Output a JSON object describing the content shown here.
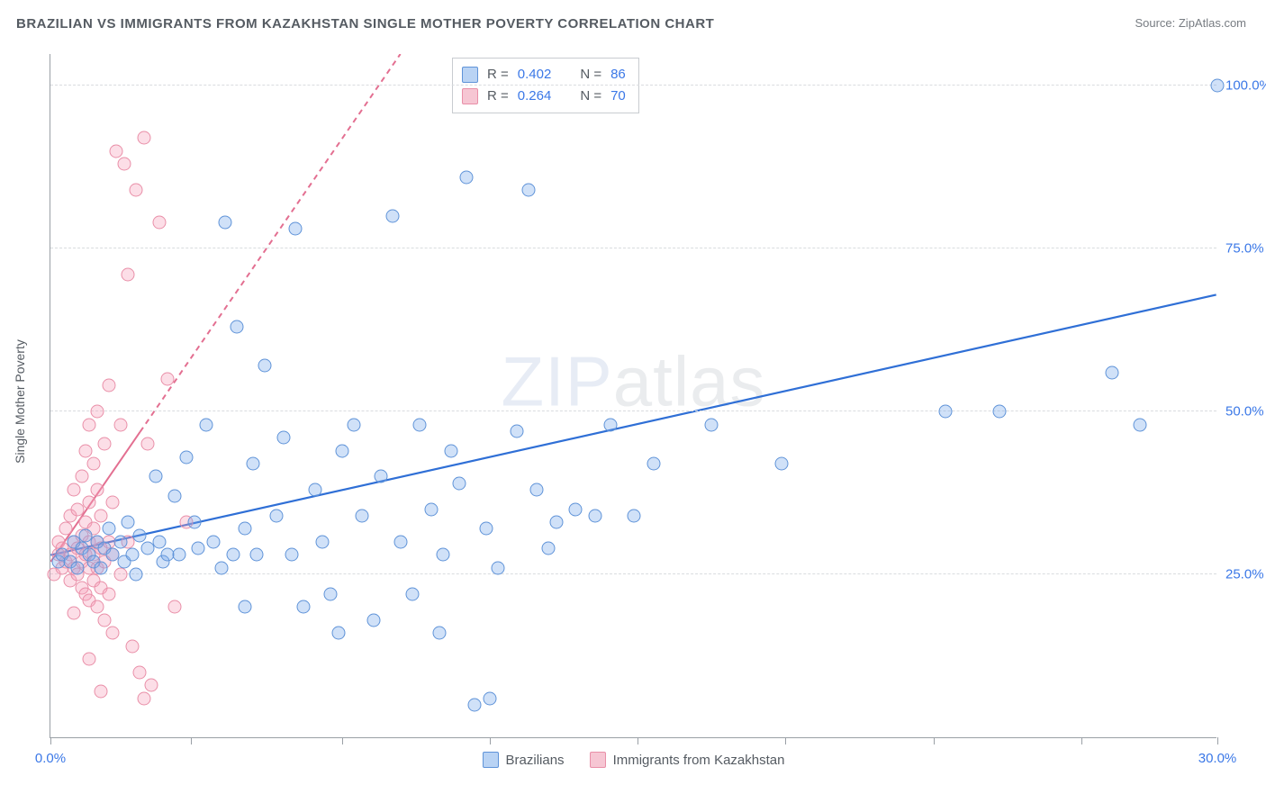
{
  "title": "BRAZILIAN VS IMMIGRANTS FROM KAZAKHSTAN SINGLE MOTHER POVERTY CORRELATION CHART",
  "source_label": "Source: ZipAtlas.com",
  "ylabel": "Single Mother Poverty",
  "watermark": "ZIPatlas",
  "chart": {
    "type": "scatter",
    "xlim": [
      0,
      30
    ],
    "ylim": [
      0,
      105
    ],
    "x_tick_positions": [
      0,
      3.6,
      7.5,
      11.3,
      15.1,
      18.9,
      22.7,
      26.5,
      30
    ],
    "x_tick_labels": {
      "0": "0.0%",
      "30": "30.0%"
    },
    "y_gridlines": [
      25,
      50,
      75,
      100
    ],
    "y_tick_labels": {
      "25": "25.0%",
      "50": "50.0%",
      "75": "75.0%",
      "100": "100.0%"
    },
    "background_color": "#ffffff",
    "grid_color": "#d9dcdf",
    "axis_color": "#9aa0a6",
    "tick_label_color": "#3b78e7",
    "label_color": "#555b62",
    "label_fontsize": 14,
    "tick_fontsize": 15,
    "marker_radius": 7.5,
    "marker_stroke_width": 1
  },
  "series": [
    {
      "name": "Brazilians",
      "marker_fill": "rgba(120,170,235,0.35)",
      "marker_stroke": "#5f93d8",
      "swatch_fill": "#b9d3f4",
      "swatch_stroke": "#5f93d8",
      "trend": {
        "x1": 0,
        "y1": 28,
        "x2": 30,
        "y2": 68,
        "stroke": "#2f6fd6",
        "width": 2.2,
        "dash": null,
        "dash_from_x": null
      },
      "R_label": "R = ",
      "R": "0.402",
      "N_label": "N = ",
      "N": "86",
      "points": [
        [
          0.2,
          27
        ],
        [
          0.3,
          28
        ],
        [
          0.5,
          27
        ],
        [
          0.6,
          30
        ],
        [
          0.7,
          26
        ],
        [
          0.8,
          29
        ],
        [
          0.9,
          31
        ],
        [
          1.0,
          28
        ],
        [
          1.1,
          27
        ],
        [
          1.2,
          30
        ],
        [
          1.3,
          26
        ],
        [
          1.4,
          29
        ],
        [
          1.5,
          32
        ],
        [
          1.6,
          28
        ],
        [
          1.8,
          30
        ],
        [
          1.9,
          27
        ],
        [
          2.0,
          33
        ],
        [
          2.1,
          28
        ],
        [
          2.2,
          25
        ],
        [
          2.3,
          31
        ],
        [
          2.5,
          29
        ],
        [
          2.7,
          40
        ],
        [
          2.8,
          30
        ],
        [
          2.9,
          27
        ],
        [
          3.0,
          28
        ],
        [
          3.2,
          37
        ],
        [
          3.3,
          28
        ],
        [
          3.5,
          43
        ],
        [
          3.7,
          33
        ],
        [
          3.8,
          29
        ],
        [
          4.0,
          48
        ],
        [
          4.2,
          30
        ],
        [
          4.4,
          26
        ],
        [
          4.5,
          79
        ],
        [
          4.7,
          28
        ],
        [
          4.8,
          63
        ],
        [
          5.0,
          32
        ],
        [
          5.2,
          42
        ],
        [
          5.3,
          28
        ],
        [
          5.5,
          57
        ],
        [
          5.8,
          34
        ],
        [
          6.0,
          46
        ],
        [
          6.2,
          28
        ],
        [
          6.3,
          78
        ],
        [
          6.5,
          20
        ],
        [
          6.8,
          38
        ],
        [
          7.0,
          30
        ],
        [
          7.2,
          22
        ],
        [
          7.4,
          16
        ],
        [
          7.5,
          44
        ],
        [
          7.8,
          48
        ],
        [
          8.0,
          34
        ],
        [
          8.3,
          18
        ],
        [
          8.5,
          40
        ],
        [
          8.8,
          80
        ],
        [
          9.0,
          30
        ],
        [
          9.3,
          22
        ],
        [
          9.5,
          48
        ],
        [
          9.8,
          35
        ],
        [
          10.0,
          16
        ],
        [
          10.1,
          28
        ],
        [
          10.3,
          44
        ],
        [
          10.5,
          39
        ],
        [
          10.7,
          86
        ],
        [
          10.9,
          5
        ],
        [
          11.2,
          32
        ],
        [
          11.5,
          26
        ],
        [
          12.0,
          47
        ],
        [
          12.3,
          84
        ],
        [
          12.5,
          38
        ],
        [
          12.8,
          29
        ],
        [
          13.0,
          33
        ],
        [
          13.5,
          35
        ],
        [
          14.0,
          34
        ],
        [
          14.4,
          48
        ],
        [
          15.0,
          34
        ],
        [
          15.5,
          42
        ],
        [
          17.0,
          48
        ],
        [
          18.8,
          42
        ],
        [
          23.0,
          50
        ],
        [
          24.4,
          50
        ],
        [
          27.3,
          56
        ],
        [
          28.0,
          48
        ],
        [
          30.0,
          100
        ],
        [
          11.3,
          6
        ],
        [
          5.0,
          20
        ]
      ]
    },
    {
      "name": "Immigrants from Kazakhstan",
      "marker_fill": "rgba(245,160,185,0.35)",
      "marker_stroke": "#e98fa8",
      "swatch_fill": "#f6c6d3",
      "swatch_stroke": "#e98fa8",
      "trend": {
        "x1": 0,
        "y1": 27,
        "x2": 9,
        "y2": 105,
        "stroke": "#e36f91",
        "width": 2,
        "dash": "6 5",
        "dash_from_x": 2.3
      },
      "R_label": "R = ",
      "R": "0.264",
      "N_label": "N = ",
      "N": "70",
      "points": [
        [
          0.1,
          25
        ],
        [
          0.2,
          28
        ],
        [
          0.2,
          30
        ],
        [
          0.3,
          26
        ],
        [
          0.3,
          29
        ],
        [
          0.4,
          27
        ],
        [
          0.4,
          32
        ],
        [
          0.5,
          24
        ],
        [
          0.5,
          28
        ],
        [
          0.5,
          34
        ],
        [
          0.6,
          26
        ],
        [
          0.6,
          30
        ],
        [
          0.6,
          38
        ],
        [
          0.7,
          25
        ],
        [
          0.7,
          29
        ],
        [
          0.7,
          35
        ],
        [
          0.8,
          23
        ],
        [
          0.8,
          27
        ],
        [
          0.8,
          31
        ],
        [
          0.8,
          40
        ],
        [
          0.9,
          22
        ],
        [
          0.9,
          28
        ],
        [
          0.9,
          33
        ],
        [
          0.9,
          44
        ],
        [
          1.0,
          21
        ],
        [
          1.0,
          26
        ],
        [
          1.0,
          30
        ],
        [
          1.0,
          36
        ],
        [
          1.0,
          48
        ],
        [
          1.1,
          24
        ],
        [
          1.1,
          28
        ],
        [
          1.1,
          32
        ],
        [
          1.1,
          42
        ],
        [
          1.2,
          20
        ],
        [
          1.2,
          26
        ],
        [
          1.2,
          30
        ],
        [
          1.2,
          38
        ],
        [
          1.2,
          50
        ],
        [
          1.3,
          23
        ],
        [
          1.3,
          29
        ],
        [
          1.3,
          34
        ],
        [
          1.4,
          18
        ],
        [
          1.4,
          27
        ],
        [
          1.4,
          45
        ],
        [
          1.5,
          22
        ],
        [
          1.5,
          30
        ],
        [
          1.5,
          54
        ],
        [
          1.6,
          16
        ],
        [
          1.6,
          28
        ],
        [
          1.6,
          36
        ],
        [
          1.7,
          90
        ],
        [
          1.8,
          25
        ],
        [
          1.8,
          48
        ],
        [
          1.9,
          88
        ],
        [
          2.0,
          30
        ],
        [
          2.0,
          71
        ],
        [
          2.1,
          14
        ],
        [
          2.2,
          84
        ],
        [
          2.3,
          10
        ],
        [
          2.4,
          92
        ],
        [
          2.4,
          6
        ],
        [
          2.5,
          45
        ],
        [
          2.6,
          8
        ],
        [
          2.8,
          79
        ],
        [
          3.0,
          55
        ],
        [
          3.2,
          20
        ],
        [
          3.5,
          33
        ],
        [
          1.0,
          12
        ],
        [
          1.3,
          7
        ],
        [
          0.6,
          19
        ]
      ]
    }
  ],
  "legend_bottom": [
    {
      "label": "Brazilians",
      "fill": "#b9d3f4",
      "stroke": "#5f93d8"
    },
    {
      "label": "Immigrants from Kazakhstan",
      "fill": "#f6c6d3",
      "stroke": "#e98fa8"
    }
  ]
}
